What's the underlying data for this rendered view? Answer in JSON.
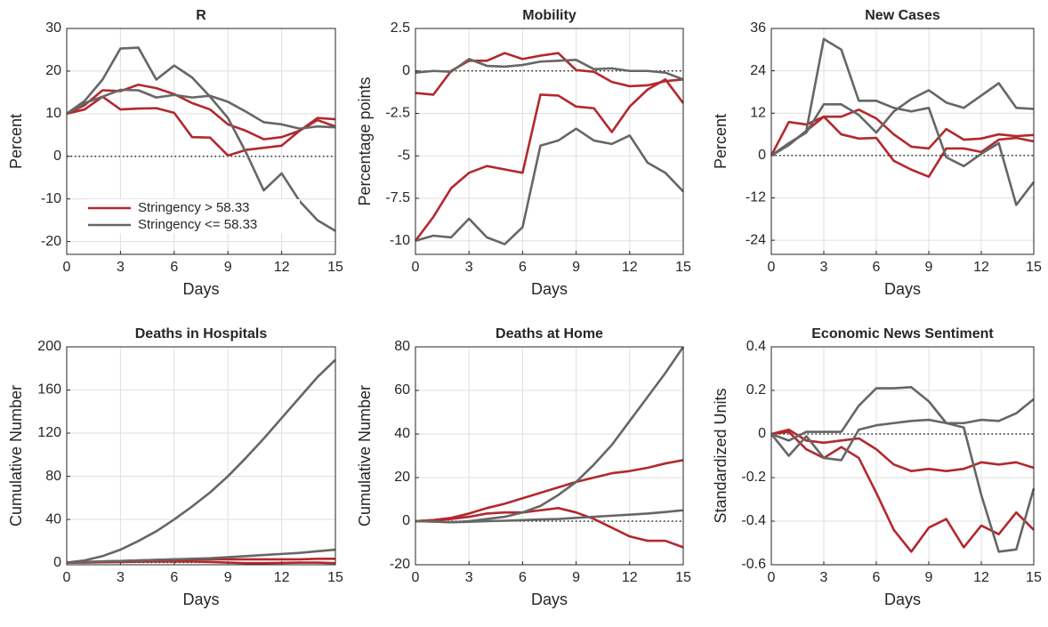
{
  "chart_data": [
    {
      "type": "line",
      "title": "R",
      "y_label": "Percent",
      "x_label": "Days",
      "x": [
        0,
        1,
        2,
        3,
        4,
        5,
        6,
        7,
        8,
        9,
        10,
        11,
        12,
        13,
        14,
        15
      ],
      "xlim": [
        0,
        15
      ],
      "xticks": [
        0,
        3,
        6,
        9,
        12,
        15
      ],
      "ylim": [
        -23,
        30
      ],
      "yticks": [
        -20,
        -10,
        0,
        10,
        20,
        30
      ],
      "grid": true,
      "zero_line": 0,
      "legend": "lower left",
      "series": [
        {
          "name": "Stringency > 58.33",
          "color": "#b2292e",
          "values": [
            10,
            12,
            15.5,
            15.3,
            16.8,
            16,
            14.6,
            12.5,
            11,
            7.5,
            6,
            4,
            4.5,
            6,
            9,
            8.7
          ]
        },
        {
          "color": "#b2292e",
          "values": [
            10,
            11,
            14,
            11,
            11.2,
            11.3,
            10.2,
            4.5,
            4.4,
            0.2,
            1.5,
            2,
            2.5,
            6,
            8.5,
            7
          ]
        },
        {
          "name": "Stringency <= 58.33",
          "color": "#666666",
          "values": [
            10,
            13,
            18,
            25.3,
            25.5,
            18,
            21.3,
            18.5,
            14,
            9,
            1,
            -8,
            -4,
            -10.5,
            -15,
            -17.5
          ]
        },
        {
          "color": "#666666",
          "values": [
            10,
            12.5,
            14,
            15.6,
            15.5,
            13.8,
            14.4,
            13.8,
            14.2,
            12.8,
            10.5,
            8,
            7.5,
            6.5,
            7,
            6.8
          ]
        }
      ]
    },
    {
      "type": "line",
      "title": "Mobility",
      "y_label": "Percentage points",
      "x_label": "Days",
      "x": [
        0,
        1,
        2,
        3,
        4,
        5,
        6,
        7,
        8,
        9,
        10,
        11,
        12,
        13,
        14,
        15
      ],
      "xlim": [
        0,
        15
      ],
      "xticks": [
        0,
        3,
        6,
        9,
        12,
        15
      ],
      "ylim": [
        -10.8,
        2.5
      ],
      "yticks": [
        -10,
        -7.5,
        -5,
        -2.5,
        0,
        2.5
      ],
      "grid": true,
      "zero_line": 0,
      "series": [
        {
          "color": "#b2292e",
          "values": [
            -1.3,
            -1.4,
            0,
            0.6,
            0.6,
            1.05,
            0.7,
            0.9,
            1.05,
            0.05,
            -0.05,
            -0.65,
            -0.9,
            -0.85,
            -0.6,
            -0.5
          ]
        },
        {
          "color": "#b2292e",
          "values": [
            -10,
            -8.6,
            -6.9,
            -6,
            -5.6,
            -5.8,
            -6,
            -1.4,
            -1.45,
            -2.1,
            -2.2,
            -3.6,
            -2.1,
            -1.1,
            -0.5,
            -1.9
          ]
        },
        {
          "color": "#666666",
          "values": [
            -0.1,
            0,
            -0.05,
            0.7,
            0.3,
            0.25,
            0.35,
            0.55,
            0.6,
            0.65,
            0.1,
            0.15,
            0,
            0,
            -0.1,
            -0.5
          ]
        },
        {
          "color": "#666666",
          "values": [
            -10,
            -9.7,
            -9.8,
            -8.7,
            -9.8,
            -10.2,
            -9.2,
            -4.4,
            -4.1,
            -3.4,
            -4.1,
            -4.3,
            -3.8,
            -5.4,
            -6,
            -7.1
          ]
        }
      ]
    },
    {
      "type": "line",
      "title": "New Cases",
      "y_label": "Percent",
      "x_label": "Days",
      "x": [
        0,
        1,
        2,
        3,
        4,
        5,
        6,
        7,
        8,
        9,
        10,
        11,
        12,
        13,
        14,
        15
      ],
      "xlim": [
        0,
        15
      ],
      "xticks": [
        0,
        3,
        6,
        9,
        12,
        15
      ],
      "ylim": [
        -28,
        36
      ],
      "yticks": [
        -24,
        -12,
        0,
        12,
        24,
        36
      ],
      "grid": true,
      "zero_line": 0,
      "series": [
        {
          "color": "#b2292e",
          "values": [
            0,
            9.5,
            8.8,
            11,
            11,
            13,
            10.5,
            6,
            2.5,
            2,
            7.5,
            4.5,
            4.8,
            6,
            5.5,
            5.8
          ]
        },
        {
          "color": "#b2292e",
          "values": [
            0,
            3,
            7,
            11,
            6,
            4.8,
            5,
            -1.5,
            -4,
            -6,
            2,
            2,
            1,
            4.5,
            5,
            4
          ]
        },
        {
          "color": "#666666",
          "values": [
            0,
            3,
            7,
            33,
            30,
            15.5,
            15.5,
            13.5,
            12.5,
            13.5,
            -0.5,
            -3,
            0.5,
            3.5,
            -14,
            -7.5
          ]
        },
        {
          "color": "#666666",
          "values": [
            0,
            3.5,
            6.5,
            14.5,
            14.5,
            11.5,
            6.5,
            12.5,
            16,
            18.5,
            15,
            13.5,
            17,
            20.5,
            13.5,
            13.2
          ]
        }
      ]
    },
    {
      "type": "line",
      "title": "Deaths in Hospitals",
      "y_label": "Cumulative Number",
      "x_label": "Days",
      "x": [
        0,
        1,
        2,
        3,
        4,
        5,
        6,
        7,
        8,
        9,
        10,
        11,
        12,
        13,
        14,
        15
      ],
      "xlim": [
        0,
        15
      ],
      "xticks": [
        0,
        3,
        6,
        9,
        12,
        15
      ],
      "ylim": [
        -2,
        200
      ],
      "yticks": [
        0,
        40,
        80,
        120,
        160,
        200
      ],
      "grid": true,
      "zero_line": 0,
      "series": [
        {
          "color": "#b2292e",
          "values": [
            0,
            0.5,
            1,
            1.5,
            2,
            2.5,
            3,
            3,
            3,
            3,
            3,
            3,
            3,
            3,
            3.5,
            3.5
          ]
        },
        {
          "color": "#b2292e",
          "values": [
            0,
            0,
            0.3,
            0.5,
            0.8,
            1,
            1,
            1,
            0.5,
            0,
            -0.5,
            -0.5,
            -0.3,
            0,
            0,
            -0.5
          ]
        },
        {
          "color": "#666666",
          "values": [
            0,
            2,
            6,
            12,
            20,
            29,
            40,
            52,
            65,
            80,
            97,
            115,
            134,
            153,
            172,
            188
          ]
        },
        {
          "color": "#666666",
          "values": [
            0,
            0.5,
            1,
            1.5,
            2,
            2.5,
            3,
            3.5,
            4,
            5,
            6,
            7,
            8,
            9,
            10.5,
            12
          ]
        }
      ]
    },
    {
      "type": "line",
      "title": "Deaths at Home",
      "y_label": "Cumulative Number",
      "x_label": "Days",
      "x": [
        0,
        1,
        2,
        3,
        4,
        5,
        6,
        7,
        8,
        9,
        10,
        11,
        12,
        13,
        14,
        15
      ],
      "xlim": [
        0,
        15
      ],
      "xticks": [
        0,
        3,
        6,
        9,
        12,
        15
      ],
      "ylim": [
        -20,
        80
      ],
      "yticks": [
        -20,
        0,
        20,
        40,
        60,
        80
      ],
      "grid": true,
      "zero_line": 0,
      "series": [
        {
          "color": "#b2292e",
          "values": [
            0,
            0.5,
            1.5,
            3.5,
            6,
            8,
            10.5,
            13,
            15.5,
            18,
            20,
            22,
            23,
            24.5,
            26.5,
            28
          ]
        },
        {
          "color": "#b2292e",
          "values": [
            0,
            0.5,
            1,
            2,
            3.5,
            4,
            4,
            5,
            6,
            4,
            1,
            -3,
            -7,
            -9,
            -9,
            -12
          ]
        },
        {
          "color": "#666666",
          "values": [
            0,
            -0.2,
            -0.5,
            0,
            1,
            2,
            4,
            7,
            12,
            18,
            26,
            35,
            46,
            57,
            68,
            80
          ]
        },
        {
          "color": "#666666",
          "values": [
            0,
            -0.2,
            -0.5,
            -0.3,
            0,
            0.2,
            0.5,
            0.8,
            1,
            1.5,
            2,
            2.5,
            3,
            3.5,
            4.2,
            5
          ]
        }
      ]
    },
    {
      "type": "line",
      "title": "Economic News Sentiment",
      "y_label": "Standardized Units",
      "x_label": "Days",
      "x": [
        0,
        1,
        2,
        3,
        4,
        5,
        6,
        7,
        8,
        9,
        10,
        11,
        12,
        13,
        14,
        15
      ],
      "xlim": [
        0,
        15
      ],
      "xticks": [
        0,
        3,
        6,
        9,
        12,
        15
      ],
      "ylim": [
        -0.6,
        0.4
      ],
      "yticks": [
        -0.6,
        -0.4,
        -0.2,
        0,
        0.2,
        0.4
      ],
      "grid": true,
      "zero_line": 0,
      "series": [
        {
          "color": "#b2292e",
          "values": [
            0,
            0.02,
            -0.03,
            -0.04,
            -0.03,
            -0.02,
            -0.07,
            -0.14,
            -0.17,
            -0.16,
            -0.17,
            -0.16,
            -0.13,
            -0.14,
            -0.13,
            -0.155
          ]
        },
        {
          "color": "#b2292e",
          "values": [
            0,
            0.01,
            -0.07,
            -0.11,
            -0.06,
            -0.11,
            -0.27,
            -0.44,
            -0.54,
            -0.43,
            -0.39,
            -0.52,
            -0.42,
            -0.46,
            -0.36,
            -0.44
          ]
        },
        {
          "color": "#666666",
          "values": [
            0,
            -0.1,
            -0.01,
            -0.11,
            -0.12,
            0.02,
            0.04,
            0.05,
            0.06,
            0.065,
            0.05,
            0.05,
            0.065,
            0.06,
            0.095,
            0.16
          ]
        },
        {
          "color": "#666666",
          "values": [
            0,
            -0.03,
            0.01,
            0.01,
            0.01,
            0.13,
            0.21,
            0.21,
            0.215,
            0.15,
            0.05,
            0.03,
            -0.28,
            -0.54,
            -0.53,
            -0.25
          ]
        }
      ]
    }
  ]
}
